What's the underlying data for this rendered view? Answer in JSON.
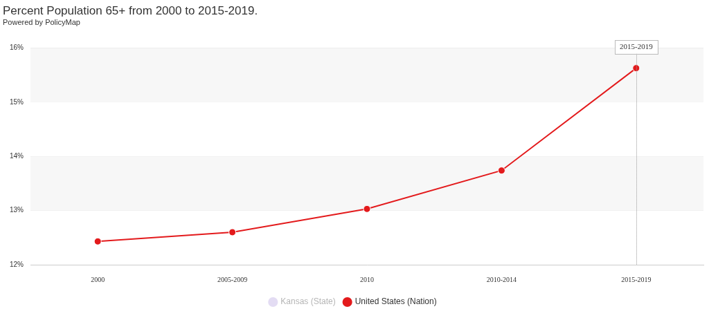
{
  "chart_data": {
    "type": "line",
    "title": "Percent Population 65+ from 2000 to 2015-2019.",
    "subtitle": "Powered by PolicyMap",
    "categories": [
      "2000",
      "2005-2009",
      "2010",
      "2010-2014",
      "2015-2019"
    ],
    "series": [
      {
        "name": "Kansas (State)",
        "color": "#e3dcf3",
        "values": [
          null,
          null,
          null,
          null,
          null
        ]
      },
      {
        "name": "United States (Nation)",
        "color": "#e31a1c",
        "values": [
          12.43,
          12.6,
          13.03,
          13.74,
          15.63
        ]
      }
    ],
    "ylim": [
      12,
      16
    ],
    "yticks": [
      {
        "value": 12,
        "label": "12%"
      },
      {
        "value": 13,
        "label": "13%"
      },
      {
        "value": 14,
        "label": "14%"
      },
      {
        "value": 15,
        "label": "15%"
      },
      {
        "value": 16,
        "label": "16%"
      }
    ],
    "grid": true,
    "legend": "bottom",
    "marker": "circle",
    "annotations": [
      {
        "x": "2015-2019",
        "label": "2015-2019"
      }
    ]
  }
}
